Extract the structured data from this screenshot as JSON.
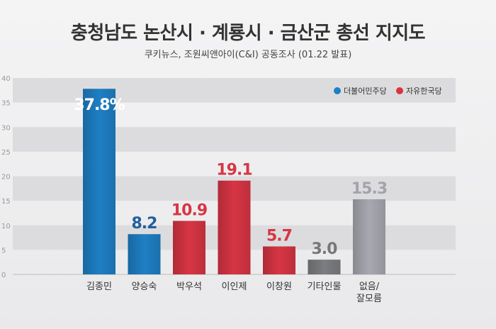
{
  "title": "충청남도 논산시 · 계룡시 · 금산군 총선 지지도",
  "subtitle": "쿠키뉴스, 조원씨앤아이(C&I) 공동조사 (01.22 발표)",
  "chart_data": {
    "type": "bar",
    "title": "충청남도 논산시 · 계룡시 · 금산군 총선 지지도",
    "subtitle": "쿠키뉴스, 조원씨앤아이(C&I) 공동조사 (01.22 발표)",
    "xlabel": "",
    "ylabel": "",
    "ylim": [
      0,
      40
    ],
    "yticks": [
      0,
      5,
      10,
      15,
      20,
      25,
      30,
      35,
      40
    ],
    "grid": "horizontal bands",
    "legend_position": "top-right",
    "legend": [
      {
        "name": "더불어민주당",
        "color": "#1f7fc4"
      },
      {
        "name": "자유한국당",
        "color": "#d73543"
      }
    ],
    "categories": [
      "김종민",
      "양승숙",
      "박우석",
      "이인제",
      "이창원",
      "기타인물",
      "없음/\n잘모름"
    ],
    "values": [
      37.8,
      8.2,
      10.9,
      19.1,
      5.7,
      3.0,
      15.3
    ],
    "value_labels": [
      "37.8%",
      "8.2",
      "10.9",
      "19.1",
      "5.7",
      "3.0",
      "15.3"
    ],
    "bar_colors": [
      "#1f7fc4",
      "#1f7fc4",
      "#d73543",
      "#d73543",
      "#d73543",
      "#7b7d80",
      "#a7a8b1"
    ],
    "label_colors": [
      "#ffffff",
      "#1f5f9e",
      "#d73543",
      "#d73543",
      "#d73543",
      "#777777",
      "#a3a3ad"
    ]
  }
}
